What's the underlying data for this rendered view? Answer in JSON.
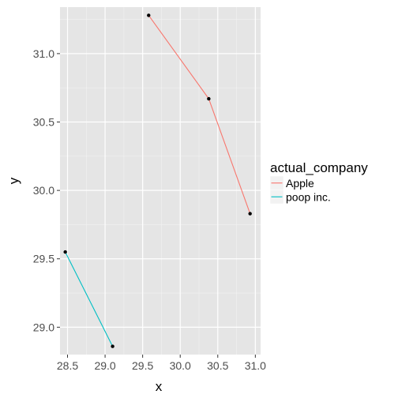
{
  "chart_data": {
    "type": "line",
    "xlabel": "x",
    "ylabel": "y",
    "xlim": [
      28.4,
      31.07
    ],
    "ylim": [
      28.8,
      31.34
    ],
    "x_ticks": [
      28.5,
      29.0,
      29.5,
      30.0,
      30.5,
      31.0
    ],
    "x_tick_labels": [
      "28.5",
      "29.0",
      "29.5",
      "30.0",
      "30.5",
      "31.0"
    ],
    "y_ticks": [
      29.0,
      29.5,
      30.0,
      30.5,
      31.0
    ],
    "y_tick_labels": [
      "29.0",
      "29.5",
      "30.0",
      "30.5",
      "31.0"
    ],
    "grid": true,
    "legend": {
      "title": "actual_company",
      "position": "right",
      "entries": [
        "Apple",
        "poop inc."
      ]
    },
    "series": [
      {
        "name": "Apple",
        "color": "#F8766D",
        "points": [
          {
            "x": 29.58,
            "y": 31.28
          },
          {
            "x": 30.38,
            "y": 30.67
          },
          {
            "x": 30.93,
            "y": 29.83
          }
        ]
      },
      {
        "name": "poop inc.",
        "color": "#00BFC4",
        "points": [
          {
            "x": 28.47,
            "y": 29.55
          },
          {
            "x": 29.1,
            "y": 28.86
          }
        ]
      }
    ],
    "marker_color": "#000000"
  }
}
